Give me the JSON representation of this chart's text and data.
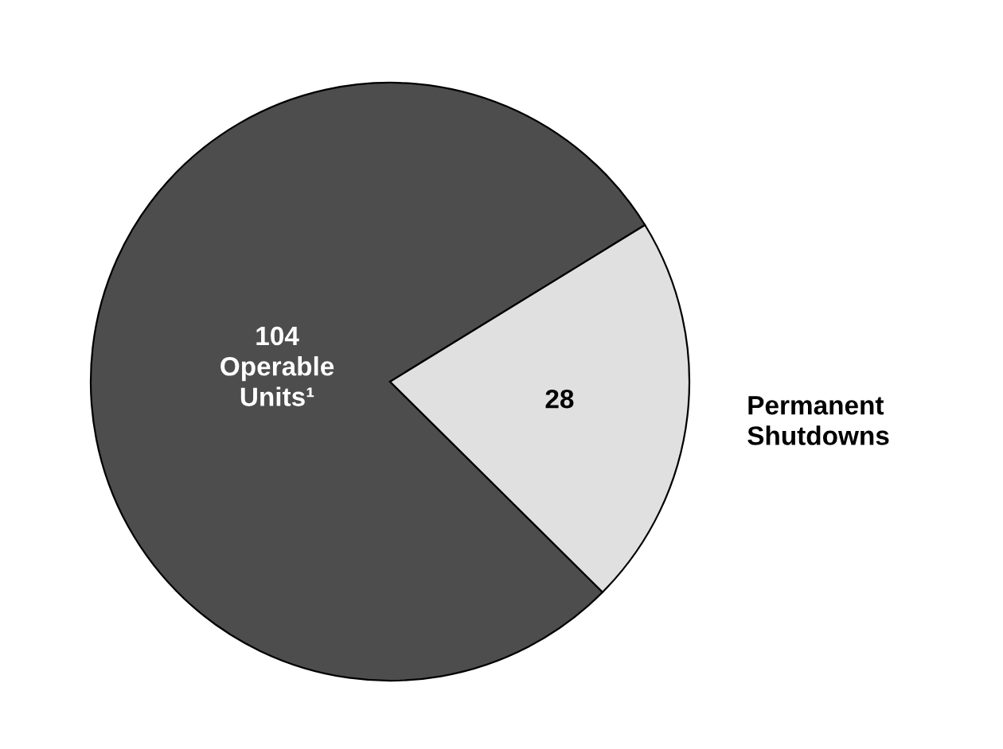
{
  "chart_data": {
    "type": "pie",
    "categories": [
      "Operable Units¹",
      "Permanent Shutdowns"
    ],
    "values": [
      104,
      28
    ],
    "colors": [
      "#4d4d4d",
      "#e0e0e0"
    ],
    "data_labels": true,
    "legend": false
  }
}
